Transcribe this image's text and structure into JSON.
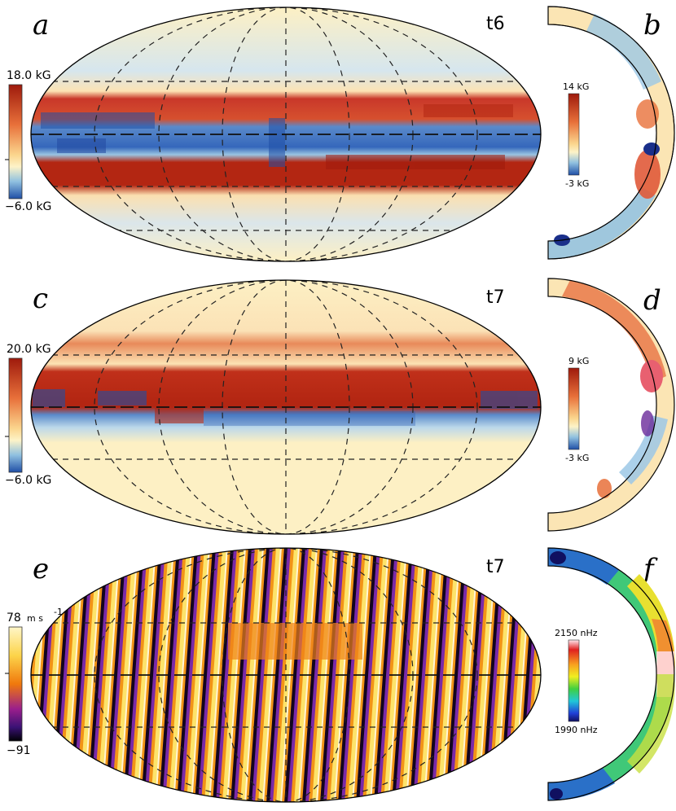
{
  "panels": [
    {
      "letter": "a",
      "time": "t6",
      "colorbar": {
        "max_label": "18.0 kG",
        "min_label": "−6.0 kG"
      }
    },
    {
      "letter": "b",
      "colorbar": {
        "max_label": "14 kG",
        "min_label": "-3 kG"
      }
    },
    {
      "letter": "c",
      "time": "t7",
      "colorbar": {
        "max_label": "20.0 kG",
        "min_label": "−6.0 kG"
      }
    },
    {
      "letter": "d",
      "colorbar": {
        "max_label": "9 kG",
        "min_label": "-3 kG"
      }
    },
    {
      "letter": "e",
      "time": "t7",
      "colorbar": {
        "max_label": "78",
        "max_unit": "m s",
        "max_exp": "-1",
        "min_label": "−91"
      }
    },
    {
      "letter": "f",
      "colorbar": {
        "max_label": "2150  nHz",
        "min_label": "1990  nHz"
      }
    }
  ],
  "colors": {
    "field_red": "#b22010",
    "field_orange": "#e8703a",
    "field_cream": "#fdf3c8",
    "field_blue": "#2c5eb4",
    "field_lightblue": "#9cc7e2",
    "vel_black": "#0a0210",
    "vel_purple": "#6b1ea0",
    "vel_orange": "#f08a10",
    "vel_yellow": "#fde36a"
  }
}
